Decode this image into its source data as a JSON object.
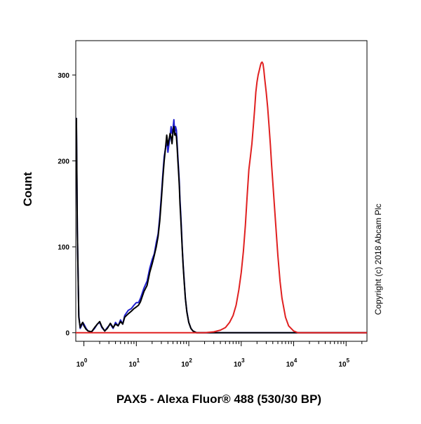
{
  "chart_data": {
    "type": "line",
    "title": "",
    "xlabel": "PAX5 - Alexa Fluor® 488 (530/30 BP)",
    "ylabel": "Count",
    "x_scale": "log",
    "xlim": [
      0.7,
      250000
    ],
    "ylim": [
      -10,
      340
    ],
    "grid": false,
    "legend": "none",
    "annotation": "Copyright (c) 2018 Abcam Plc",
    "x_ticks": [
      {
        "value": 1,
        "base": "10",
        "exp": "0"
      },
      {
        "value": 10,
        "base": "10",
        "exp": "1"
      },
      {
        "value": 100,
        "base": "10",
        "exp": "2"
      },
      {
        "value": 1000,
        "base": "10",
        "exp": "3"
      },
      {
        "value": 10000,
        "base": "10",
        "exp": "4"
      },
      {
        "value": 100000,
        "base": "10",
        "exp": "5"
      }
    ],
    "y_ticks": [
      0,
      100,
      200,
      300
    ],
    "series": [
      {
        "color": "#1f1fd0",
        "points": [
          [
            0.72,
            250
          ],
          [
            0.75,
            120
          ],
          [
            0.8,
            20
          ],
          [
            0.85,
            5
          ],
          [
            0.9,
            8
          ],
          [
            0.95,
            12
          ],
          [
            1.0,
            10
          ],
          [
            1.1,
            5
          ],
          [
            1.2,
            2
          ],
          [
            1.4,
            1
          ],
          [
            1.6,
            5
          ],
          [
            1.8,
            10
          ],
          [
            2.0,
            12
          ],
          [
            2.2,
            6
          ],
          [
            2.5,
            2
          ],
          [
            2.8,
            6
          ],
          [
            3.2,
            10
          ],
          [
            3.6,
            5
          ],
          [
            4.0,
            12
          ],
          [
            4.5,
            8
          ],
          [
            5.0,
            15
          ],
          [
            5.5,
            10
          ],
          [
            6,
            20
          ],
          [
            7,
            26
          ],
          [
            8,
            28
          ],
          [
            9,
            32
          ],
          [
            10,
            35
          ],
          [
            11,
            35
          ],
          [
            12,
            40
          ],
          [
            14,
            52
          ],
          [
            16,
            60
          ],
          [
            18,
            75
          ],
          [
            20,
            85
          ],
          [
            22,
            92
          ],
          [
            24,
            105
          ],
          [
            26,
            115
          ],
          [
            28,
            135
          ],
          [
            30,
            160
          ],
          [
            32,
            185
          ],
          [
            34,
            205
          ],
          [
            36,
            215
          ],
          [
            38,
            225
          ],
          [
            40,
            210
          ],
          [
            42,
            220
          ],
          [
            44,
            228
          ],
          [
            46,
            240
          ],
          [
            48,
            232
          ],
          [
            50,
            238
          ],
          [
            52,
            248
          ],
          [
            54,
            233
          ],
          [
            56,
            240
          ],
          [
            58,
            236
          ],
          [
            60,
            220
          ],
          [
            62,
            205
          ],
          [
            64,
            190
          ],
          [
            66,
            175
          ],
          [
            68,
            155
          ],
          [
            70,
            140
          ],
          [
            72,
            125
          ],
          [
            75,
            100
          ],
          [
            78,
            80
          ],
          [
            82,
            60
          ],
          [
            86,
            40
          ],
          [
            92,
            25
          ],
          [
            100,
            12
          ],
          [
            110,
            5
          ],
          [
            120,
            2
          ],
          [
            140,
            0
          ],
          [
            200,
            0
          ],
          [
            400,
            0
          ],
          [
            1000,
            0
          ],
          [
            10000,
            0
          ],
          [
            250000,
            0
          ]
        ]
      },
      {
        "color": "#000000",
        "points": [
          [
            0.72,
            250
          ],
          [
            0.75,
            120
          ],
          [
            0.8,
            18
          ],
          [
            0.85,
            6
          ],
          [
            0.9,
            10
          ],
          [
            0.95,
            12
          ],
          [
            1.0,
            8
          ],
          [
            1.1,
            4
          ],
          [
            1.2,
            2
          ],
          [
            1.4,
            1
          ],
          [
            1.6,
            6
          ],
          [
            1.8,
            10
          ],
          [
            2.0,
            13
          ],
          [
            2.2,
            7
          ],
          [
            2.5,
            2
          ],
          [
            2.8,
            5
          ],
          [
            3.2,
            11
          ],
          [
            3.6,
            6
          ],
          [
            4.0,
            10
          ],
          [
            4.5,
            8
          ],
          [
            5.0,
            13
          ],
          [
            5.5,
            10
          ],
          [
            6,
            18
          ],
          [
            7,
            22
          ],
          [
            8,
            25
          ],
          [
            9,
            28
          ],
          [
            10,
            30
          ],
          [
            11,
            32
          ],
          [
            12,
            36
          ],
          [
            14,
            48
          ],
          [
            16,
            55
          ],
          [
            18,
            70
          ],
          [
            20,
            80
          ],
          [
            22,
            90
          ],
          [
            24,
            100
          ],
          [
            26,
            112
          ],
          [
            28,
            130
          ],
          [
            30,
            155
          ],
          [
            32,
            180
          ],
          [
            34,
            200
          ],
          [
            36,
            215
          ],
          [
            38,
            230
          ],
          [
            40,
            218
          ],
          [
            42,
            225
          ],
          [
            44,
            232
          ],
          [
            46,
            228
          ],
          [
            48,
            220
          ],
          [
            50,
            235
          ],
          [
            52,
            240
          ],
          [
            54,
            230
          ],
          [
            56,
            232
          ],
          [
            58,
            228
          ],
          [
            60,
            215
          ],
          [
            62,
            200
          ],
          [
            64,
            185
          ],
          [
            66,
            170
          ],
          [
            68,
            150
          ],
          [
            70,
            135
          ],
          [
            72,
            120
          ],
          [
            75,
            98
          ],
          [
            78,
            78
          ],
          [
            82,
            58
          ],
          [
            86,
            40
          ],
          [
            92,
            24
          ],
          [
            100,
            12
          ],
          [
            110,
            5
          ],
          [
            120,
            2
          ],
          [
            140,
            0
          ],
          [
            200,
            0
          ],
          [
            400,
            0
          ],
          [
            1000,
            0
          ],
          [
            10000,
            0
          ],
          [
            250000,
            0
          ]
        ]
      },
      {
        "color": "#e02020",
        "points": [
          [
            0.7,
            0
          ],
          [
            100,
            0
          ],
          [
            200,
            0
          ],
          [
            300,
            1
          ],
          [
            400,
            3
          ],
          [
            500,
            6
          ],
          [
            600,
            12
          ],
          [
            700,
            20
          ],
          [
            800,
            32
          ],
          [
            900,
            50
          ],
          [
            1000,
            70
          ],
          [
            1100,
            95
          ],
          [
            1200,
            125
          ],
          [
            1300,
            160
          ],
          [
            1400,
            190
          ],
          [
            1500,
            205
          ],
          [
            1600,
            220
          ],
          [
            1700,
            240
          ],
          [
            1800,
            260
          ],
          [
            1900,
            280
          ],
          [
            2000,
            292
          ],
          [
            2100,
            300
          ],
          [
            2200,
            305
          ],
          [
            2300,
            310
          ],
          [
            2400,
            314
          ],
          [
            2500,
            315
          ],
          [
            2600,
            313
          ],
          [
            2700,
            306
          ],
          [
            2800,
            296
          ],
          [
            3000,
            280
          ],
          [
            3200,
            262
          ],
          [
            3400,
            240
          ],
          [
            3600,
            218
          ],
          [
            3800,
            195
          ],
          [
            4000,
            175
          ],
          [
            4500,
            130
          ],
          [
            5000,
            90
          ],
          [
            5500,
            60
          ],
          [
            6000,
            40
          ],
          [
            7000,
            18
          ],
          [
            8000,
            8
          ],
          [
            10000,
            2
          ],
          [
            12000,
            0
          ],
          [
            30000,
            0
          ],
          [
            250000,
            0
          ]
        ]
      }
    ]
  }
}
